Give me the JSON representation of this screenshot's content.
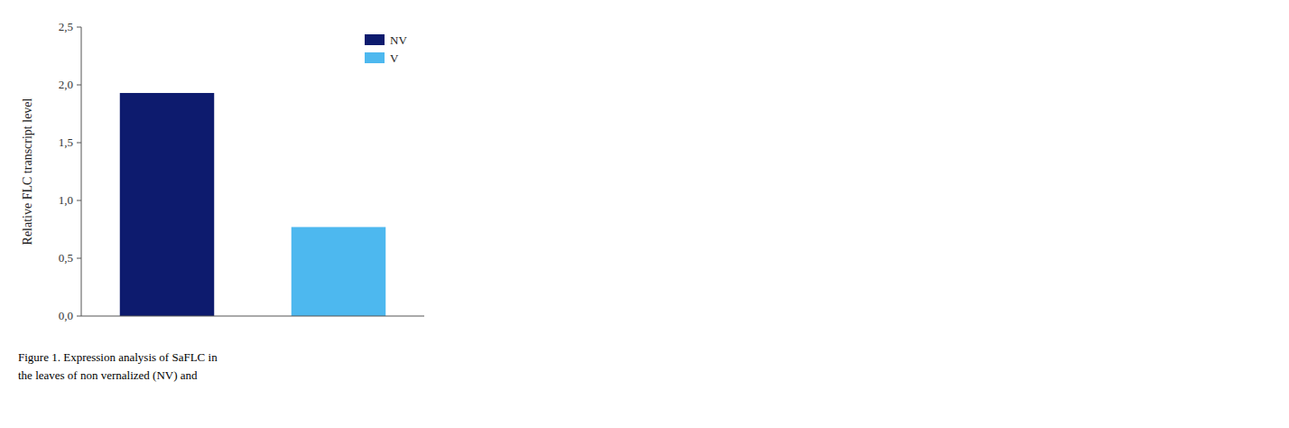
{
  "chart_data": {
    "type": "bar",
    "categories": [
      "NV",
      "V"
    ],
    "values": [
      1.93,
      0.77
    ],
    "colors": [
      "#0d1b6e",
      "#4db8ef"
    ],
    "ylabel": "Relative FLC transcript level",
    "ylim": [
      0,
      2.5
    ],
    "yticks": [
      {
        "value": 0,
        "label": "0,0"
      },
      {
        "value": 0.5,
        "label": "0,5"
      },
      {
        "value": 1,
        "label": "1,0"
      },
      {
        "value": 1.5,
        "label": "1,5"
      },
      {
        "value": 2,
        "label": "2,0"
      },
      {
        "value": 2.5,
        "label": "2,5"
      }
    ],
    "legend": "upper right",
    "grid": false,
    "tick_labels": "y",
    "annotations": [
      "Figure 1. Expression analysis of SaFLC in",
      "the leaves of non vernalized (NV) and"
    ]
  }
}
